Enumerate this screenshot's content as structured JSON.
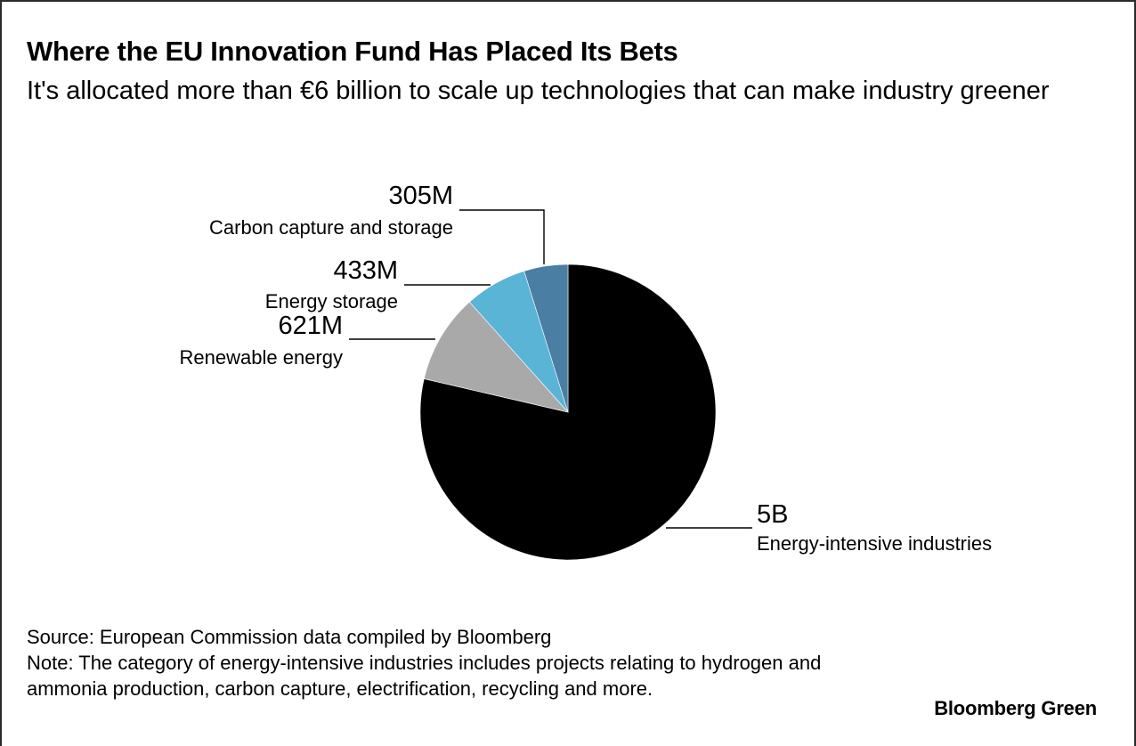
{
  "header": {
    "title": "Where the EU Innovation Fund Has Placed Its Bets",
    "subtitle": "It's allocated more than €6 billion to scale up technologies that can make industry greener"
  },
  "chart_data": {
    "type": "pie",
    "slices": [
      {
        "label": "Energy-intensive industries",
        "value": 5000,
        "value_label": "5B",
        "color": "#000000"
      },
      {
        "label": "Renewable energy",
        "value": 621,
        "value_label": "621M",
        "color": "#a9a9a9"
      },
      {
        "label": "Energy storage",
        "value": 433,
        "value_label": "433M",
        "color": "#5ab4d6"
      },
      {
        "label": "Carbon capture and storage",
        "value": 305,
        "value_label": "305M",
        "color": "#4a7ea3"
      }
    ],
    "unit": "EUR",
    "legend": "none"
  },
  "footer": {
    "source": "Source: European Commission data compiled by Bloomberg",
    "note": "Note: The category of energy-intensive industries includes projects relating to hydrogen and ammonia production, carbon capture, electrification, recycling and more."
  },
  "brand": "Bloomberg Green"
}
